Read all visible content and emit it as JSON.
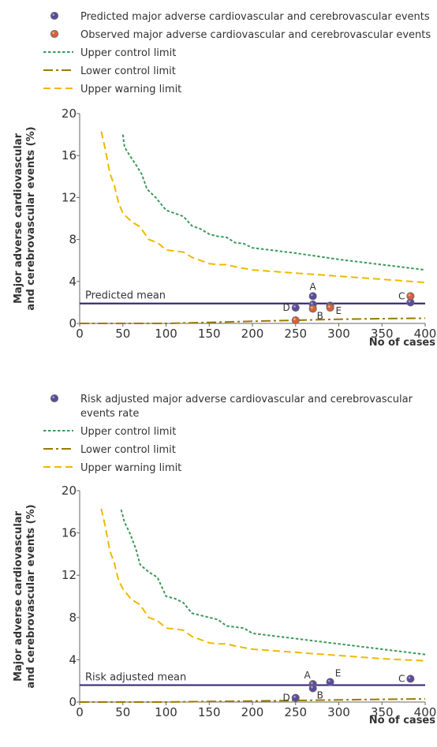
{
  "colors": {
    "purple": "#5a4a9c",
    "orange": "#d9603a",
    "ucl": "#3a9a5a",
    "lcl": "#9a7a00",
    "uwl": "#f0b800",
    "mean": "#3a2a7a",
    "axis": "#666666"
  },
  "chart_data": [
    {
      "type": "scatter",
      "title": "",
      "legend": [
        {
          "kind": "dot",
          "color": "#5a4a9c",
          "label": "Predicted major adverse cardiovascular and cerebrovascular events"
        },
        {
          "kind": "dot",
          "color": "#d9603a",
          "label": "Observed major adverse cardiovascular and cerebrovascular events"
        },
        {
          "kind": "ucl",
          "label": "Upper control limit"
        },
        {
          "kind": "lcl",
          "label": "Lower control limit"
        },
        {
          "kind": "uwl",
          "label": "Upper warning limit"
        }
      ],
      "ylabel_line1": "Major adverse cardiovascular",
      "ylabel_line2": "and cerebrovascular events (%)",
      "xlabel": "No of cases",
      "xlim": [
        0,
        400
      ],
      "ylim": [
        0,
        20
      ],
      "xticks": [
        "0",
        "50",
        "100",
        "150",
        "200",
        "250",
        "300",
        "350",
        "400"
      ],
      "yticks": [
        "0",
        "4",
        "8",
        "12",
        "16",
        "20"
      ],
      "mean_label": "Predicted mean",
      "mean_value": 1.9,
      "ucl": [
        [
          50,
          18
        ],
        [
          52,
          16.8
        ],
        [
          58,
          16
        ],
        [
          66,
          15
        ],
        [
          72,
          14.2
        ],
        [
          78,
          12.8
        ],
        [
          88,
          12
        ],
        [
          100,
          10.8
        ],
        [
          110,
          10.5
        ],
        [
          120,
          10.2
        ],
        [
          130,
          9.3
        ],
        [
          140,
          9
        ],
        [
          150,
          8.5
        ],
        [
          160,
          8.3
        ],
        [
          170,
          8.2
        ],
        [
          180,
          7.7
        ],
        [
          190,
          7.6
        ],
        [
          200,
          7.2
        ],
        [
          250,
          6.7
        ],
        [
          300,
          6.1
        ],
        [
          350,
          5.6
        ],
        [
          400,
          5.1
        ]
      ],
      "uwl": [
        [
          25,
          18.3
        ],
        [
          30,
          16.5
        ],
        [
          35,
          14.3
        ],
        [
          40,
          13.2
        ],
        [
          45,
          11.5
        ],
        [
          50,
          10.5
        ],
        [
          60,
          9.7
        ],
        [
          70,
          9.2
        ],
        [
          80,
          8
        ],
        [
          90,
          7.7
        ],
        [
          100,
          7
        ],
        [
          110,
          6.9
        ],
        [
          120,
          6.8
        ],
        [
          130,
          6.3
        ],
        [
          140,
          6
        ],
        [
          150,
          5.7
        ],
        [
          160,
          5.6
        ],
        [
          170,
          5.6
        ],
        [
          180,
          5.4
        ],
        [
          200,
          5.1
        ],
        [
          250,
          4.8
        ],
        [
          300,
          4.5
        ],
        [
          350,
          4.2
        ],
        [
          400,
          3.9
        ]
      ],
      "lcl": [
        [
          0,
          0
        ],
        [
          100,
          0
        ],
        [
          150,
          0.1
        ],
        [
          200,
          0.2
        ],
        [
          250,
          0.3
        ],
        [
          300,
          0.4
        ],
        [
          350,
          0.45
        ],
        [
          400,
          0.5
        ]
      ],
      "points": [
        {
          "series": "predicted",
          "x": 270,
          "y": 2.6
        },
        {
          "series": "predicted",
          "x": 250,
          "y": 1.5
        },
        {
          "series": "predicted",
          "x": 270,
          "y": 1.8
        },
        {
          "series": "predicted",
          "x": 290,
          "y": 1.7
        },
        {
          "series": "predicted",
          "x": 383,
          "y": 2.0
        },
        {
          "series": "observed",
          "x": 250,
          "y": 0.3
        },
        {
          "series": "observed",
          "x": 270,
          "y": 1.4
        },
        {
          "series": "observed",
          "x": 290,
          "y": 1.5
        },
        {
          "series": "observed",
          "x": 383,
          "y": 2.6
        }
      ],
      "point_labels": [
        {
          "text": "A",
          "x": 270,
          "y": 2.6,
          "pos": "above"
        },
        {
          "text": "B",
          "x": 270,
          "y": 1.4,
          "pos": "below-right"
        },
        {
          "text": "C",
          "x": 383,
          "y": 2.6,
          "pos": "left"
        },
        {
          "text": "D",
          "x": 250,
          "y": 1.5,
          "pos": "left"
        },
        {
          "text": "E",
          "x": 290,
          "y": 1.5,
          "pos": "right"
        }
      ]
    },
    {
      "type": "scatter",
      "title": "",
      "legend": [
        {
          "kind": "dot",
          "color": "#5a4a9c",
          "label": "Risk adjusted major adverse cardiovascular and cerebrovascular",
          "label2": "events rate"
        },
        {
          "kind": "ucl",
          "label": "Upper control limit"
        },
        {
          "kind": "lcl",
          "label": "Lower control limit"
        },
        {
          "kind": "uwl",
          "label": "Upper warning limit"
        }
      ],
      "ylabel_line1": "Major adverse cardiovascular",
      "ylabel_line2": "and cerebrovascular events (%)",
      "xlabel": "No of cases",
      "xlim": [
        0,
        400
      ],
      "ylim": [
        0,
        20
      ],
      "xticks": [
        "0",
        "50",
        "100",
        "150",
        "200",
        "250",
        "300",
        "350",
        "400"
      ],
      "yticks": [
        "0",
        "4",
        "8",
        "12",
        "16",
        "20"
      ],
      "mean_label": "Risk adjusted mean",
      "mean_value": 1.6,
      "ucl": [
        [
          48,
          18.2
        ],
        [
          52,
          17
        ],
        [
          58,
          16
        ],
        [
          65,
          14.5
        ],
        [
          70,
          13
        ],
        [
          80,
          12.3
        ],
        [
          90,
          11.8
        ],
        [
          100,
          10
        ],
        [
          110,
          9.8
        ],
        [
          120,
          9.4
        ],
        [
          130,
          8.4
        ],
        [
          140,
          8.2
        ],
        [
          150,
          8
        ],
        [
          160,
          7.8
        ],
        [
          170,
          7.2
        ],
        [
          180,
          7.1
        ],
        [
          190,
          7
        ],
        [
          200,
          6.5
        ],
        [
          250,
          6
        ],
        [
          300,
          5.5
        ],
        [
          350,
          5.0
        ],
        [
          400,
          4.5
        ]
      ],
      "uwl": [
        [
          25,
          18.3
        ],
        [
          30,
          16.5
        ],
        [
          35,
          14.3
        ],
        [
          40,
          13.2
        ],
        [
          45,
          11.5
        ],
        [
          50,
          10.7
        ],
        [
          60,
          9.7
        ],
        [
          70,
          9.2
        ],
        [
          80,
          8
        ],
        [
          90,
          7.7
        ],
        [
          100,
          7
        ],
        [
          110,
          6.9
        ],
        [
          120,
          6.8
        ],
        [
          130,
          6.2
        ],
        [
          140,
          5.9
        ],
        [
          150,
          5.6
        ],
        [
          160,
          5.5
        ],
        [
          170,
          5.5
        ],
        [
          180,
          5.3
        ],
        [
          200,
          5
        ],
        [
          250,
          4.7
        ],
        [
          300,
          4.4
        ],
        [
          350,
          4.1
        ],
        [
          400,
          3.9
        ]
      ],
      "lcl": [
        [
          0,
          0
        ],
        [
          100,
          0
        ],
        [
          150,
          0.05
        ],
        [
          200,
          0.1
        ],
        [
          250,
          0.15
        ],
        [
          300,
          0.2
        ],
        [
          350,
          0.25
        ],
        [
          400,
          0.3
        ]
      ],
      "points": [
        {
          "series": "risk",
          "x": 270,
          "y": 1.7
        },
        {
          "series": "risk",
          "x": 270,
          "y": 1.3
        },
        {
          "series": "risk",
          "x": 290,
          "y": 1.9
        },
        {
          "series": "risk",
          "x": 383,
          "y": 2.2
        },
        {
          "series": "risk",
          "x": 250,
          "y": 0.4
        }
      ],
      "point_labels": [
        {
          "text": "A",
          "x": 270,
          "y": 1.7,
          "pos": "above-left"
        },
        {
          "text": "B",
          "x": 270,
          "y": 1.3,
          "pos": "below-right"
        },
        {
          "text": "C",
          "x": 383,
          "y": 2.2,
          "pos": "left"
        },
        {
          "text": "D",
          "x": 250,
          "y": 0.4,
          "pos": "left"
        },
        {
          "text": "E",
          "x": 290,
          "y": 1.9,
          "pos": "above-right"
        }
      ]
    }
  ]
}
